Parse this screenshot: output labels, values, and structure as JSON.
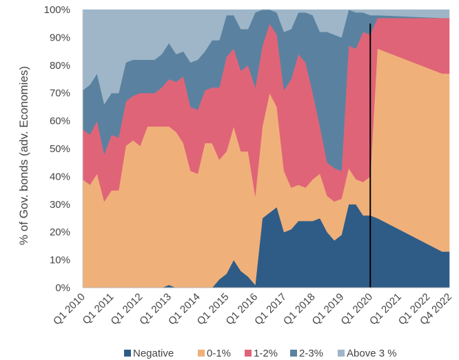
{
  "chart_data": {
    "type": "area",
    "stacked": true,
    "ylabel": "% of Gov. bonds (adv. Economies)",
    "xlabel": "",
    "ylim": [
      0,
      100
    ],
    "yticks": [
      "0%",
      "10%",
      "20%",
      "30%",
      "40%",
      "50%",
      "60%",
      "70%",
      "80%",
      "90%",
      "100%"
    ],
    "x_tick_labels": [
      "Q1 2010",
      "Q1 2011",
      "Q1 2012",
      "Q1 2013",
      "Q1 2014",
      "Q1 2015",
      "Q1 2016",
      "Q1 2017",
      "Q1 2018",
      "Q1 2019",
      "Q1 2020",
      "Q1 2021",
      "Q1 2022",
      "Q4 2022"
    ],
    "x_tick_positions": [
      2010.0,
      2011.0,
      2012.0,
      2013.0,
      2014.0,
      2015.0,
      2016.0,
      2017.0,
      2018.0,
      2019.0,
      2020.0,
      2021.0,
      2022.0,
      2022.75
    ],
    "xlim": [
      2010.0,
      2022.75
    ],
    "vertical_marker": {
      "x": 2020.0,
      "color": "#000000"
    },
    "x": [
      2010.0,
      2010.25,
      2010.5,
      2010.75,
      2011.0,
      2011.25,
      2011.5,
      2011.75,
      2012.0,
      2012.25,
      2012.5,
      2012.75,
      2013.0,
      2013.25,
      2013.5,
      2013.75,
      2014.0,
      2014.25,
      2014.5,
      2014.75,
      2015.0,
      2015.25,
      2015.5,
      2015.75,
      2016.0,
      2016.25,
      2016.5,
      2016.75,
      2017.0,
      2017.25,
      2017.5,
      2017.75,
      2018.0,
      2018.25,
      2018.5,
      2018.75,
      2019.0,
      2019.25,
      2019.5,
      2019.75,
      2020.0,
      2020.25,
      2022.5,
      2022.75
    ],
    "series": [
      {
        "name": "Negative",
        "color": "#2e5c87",
        "values": [
          0,
          0,
          0,
          0,
          0,
          0,
          0,
          0,
          0,
          0,
          0,
          0,
          1,
          0,
          0,
          0,
          0,
          0,
          0,
          3,
          5,
          10,
          6,
          4,
          1,
          25,
          27,
          29,
          20,
          21,
          24,
          24,
          24,
          25,
          20,
          17,
          19,
          30,
          30,
          26,
          26,
          25,
          13,
          13
        ]
      },
      {
        "name": "0-1%",
        "color": "#f0b07a",
        "values": [
          39,
          37,
          41,
          31,
          35,
          35,
          51,
          53,
          51,
          58,
          58,
          58,
          57,
          56,
          52,
          42,
          41,
          52,
          52,
          43,
          44,
          48,
          43,
          45,
          32,
          33,
          43,
          36,
          22,
          15,
          13,
          12,
          15,
          16,
          13,
          14,
          13,
          13,
          9,
          12,
          14,
          61,
          64,
          64
        ]
      },
      {
        "name": "1-2%",
        "color": "#e06478",
        "values": [
          18,
          18,
          19,
          17,
          20,
          19,
          16,
          16,
          19,
          12,
          12,
          14,
          17,
          18,
          24,
          23,
          23,
          19,
          20,
          26,
          34,
          28,
          29,
          31,
          39,
          29,
          25,
          26,
          29,
          39,
          47,
          45,
          31,
          17,
          12,
          12,
          10,
          44,
          47,
          54,
          51,
          11,
          20,
          20
        ]
      },
      {
        "name": "2-3%",
        "color": "#5a82a0",
        "values": [
          14,
          18,
          17,
          18,
          15,
          16,
          14,
          13,
          12,
          12,
          12,
          12,
          13,
          10,
          9,
          16,
          18,
          14,
          17,
          17,
          15,
          12,
          15,
          13,
          27,
          13,
          5,
          8,
          21,
          18,
          15,
          18,
          28,
          34,
          47,
          48,
          48,
          13,
          13,
          7,
          7,
          1,
          0,
          0
        ]
      },
      {
        "name": "Above 3 %",
        "color": "#9fb6c8",
        "values": [
          29,
          27,
          23,
          34,
          30,
          30,
          19,
          18,
          18,
          18,
          18,
          16,
          12,
          16,
          15,
          19,
          18,
          15,
          11,
          11,
          2,
          2,
          7,
          7,
          1,
          0,
          0,
          1,
          8,
          7,
          1,
          1,
          2,
          8,
          8,
          9,
          10,
          0,
          1,
          1,
          2,
          2,
          3,
          3
        ]
      }
    ],
    "legend": {
      "position": "bottom",
      "entries": [
        "Negative",
        "0-1%",
        "1-2%",
        "2-3%",
        "Above 3 %"
      ]
    },
    "grid": false
  }
}
